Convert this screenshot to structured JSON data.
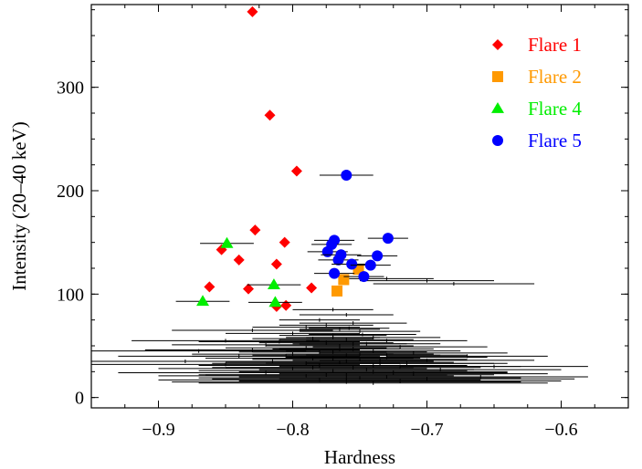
{
  "chart_data": {
    "type": "scatter",
    "title": "",
    "xlabel": "Hardness",
    "ylabel": "Intensity (20–40 keV)",
    "xlim": [
      -0.95,
      -0.55
    ],
    "ylim": [
      -10,
      380
    ],
    "xticks": [
      -0.9,
      -0.8,
      -0.7,
      -0.6
    ],
    "xtick_labels": [
      "−0.9",
      "−0.8",
      "−0.7",
      "−0.6"
    ],
    "yticks": [
      0,
      100,
      200,
      300
    ],
    "ytick_labels": [
      "0",
      "100",
      "200",
      "300"
    ],
    "grid": false,
    "legend_position": "top-right",
    "background_points": {
      "color": "#000000",
      "description": "persistent emission: black points with horizontal error bars",
      "points": [
        [
          -0.77,
          85,
          0.03
        ],
        [
          -0.76,
          80,
          0.035
        ],
        [
          -0.78,
          75,
          0.03
        ],
        [
          -0.755,
          72,
          0.04
        ],
        [
          -0.775,
          70,
          0.035
        ],
        [
          -0.79,
          68,
          0.04
        ],
        [
          -0.765,
          66,
          0.03
        ],
        [
          -0.75,
          64,
          0.045
        ],
        [
          -0.8,
          62,
          0.05
        ],
        [
          -0.77,
          60,
          0.04
        ],
        [
          -0.74,
          58,
          0.05
        ],
        [
          -0.785,
          57,
          0.045
        ],
        [
          -0.76,
          56,
          0.05
        ],
        [
          -0.73,
          55,
          0.06
        ],
        [
          -0.81,
          54,
          0.06
        ],
        [
          -0.775,
          53,
          0.05
        ],
        [
          -0.745,
          52,
          0.055
        ],
        [
          -0.82,
          51,
          0.07
        ],
        [
          -0.765,
          50,
          0.055
        ],
        [
          -0.72,
          49,
          0.065
        ],
        [
          -0.79,
          48,
          0.06
        ],
        [
          -0.755,
          47,
          0.06
        ],
        [
          -0.83,
          46,
          0.08
        ],
        [
          -0.74,
          45,
          0.065
        ],
        [
          -0.77,
          44,
          0.07
        ],
        [
          -0.71,
          43,
          0.07
        ],
        [
          -0.8,
          42,
          0.075
        ],
        [
          -0.76,
          41,
          0.07
        ],
        [
          -0.84,
          40,
          0.09
        ],
        [
          -0.73,
          39,
          0.075
        ],
        [
          -0.785,
          38,
          0.08
        ],
        [
          -0.75,
          37,
          0.08
        ],
        [
          -0.7,
          36,
          0.08
        ],
        [
          -0.815,
          35,
          0.09
        ],
        [
          -0.765,
          34,
          0.085
        ],
        [
          -0.735,
          33,
          0.085
        ],
        [
          -0.85,
          32,
          0.1
        ],
        [
          -0.78,
          31,
          0.09
        ],
        [
          -0.72,
          30,
          0.09
        ],
        [
          -0.755,
          29,
          0.095
        ],
        [
          -0.8,
          28,
          0.1
        ],
        [
          -0.69,
          27,
          0.09
        ],
        [
          -0.77,
          26,
          0.1
        ],
        [
          -0.74,
          25,
          0.1
        ],
        [
          -0.82,
          24,
          0.11
        ],
        [
          -0.71,
          23,
          0.1
        ],
        [
          -0.76,
          22,
          0.11
        ],
        [
          -0.79,
          21,
          0.11
        ],
        [
          -0.73,
          20,
          0.11
        ],
        [
          -0.75,
          19,
          0.12
        ],
        [
          -0.7,
          18,
          0.11
        ],
        [
          -0.78,
          17,
          0.12
        ],
        [
          -0.72,
          16,
          0.12
        ],
        [
          -0.76,
          15,
          0.13
        ],
        [
          -0.74,
          14,
          0.13
        ],
        [
          -0.77,
          38,
          0.06
        ],
        [
          -0.75,
          42,
          0.055
        ],
        [
          -0.76,
          35,
          0.065
        ],
        [
          -0.78,
          44,
          0.05
        ],
        [
          -0.74,
          31,
          0.07
        ],
        [
          -0.765,
          47,
          0.045
        ],
        [
          -0.745,
          27,
          0.08
        ],
        [
          -0.79,
          33,
          0.07
        ],
        [
          -0.73,
          41,
          0.06
        ],
        [
          -0.775,
          22,
          0.09
        ],
        [
          -0.755,
          52,
          0.04
        ],
        [
          -0.735,
          36,
          0.065
        ],
        [
          -0.785,
          29,
          0.075
        ],
        [
          -0.76,
          18,
          0.1
        ],
        [
          -0.725,
          24,
          0.085
        ],
        [
          -0.805,
          40,
          0.07
        ],
        [
          -0.715,
          33,
          0.075
        ],
        [
          -0.77,
          58,
          0.035
        ],
        [
          -0.748,
          61,
          0.04
        ],
        [
          -0.758,
          67,
          0.03
        ],
        [
          -0.73,
          115,
          0.035
        ],
        [
          -0.7,
          113,
          0.05
        ],
        [
          -0.68,
          110,
          0.06
        ],
        [
          -0.83,
          65,
          0.06
        ],
        [
          -0.85,
          55,
          0.07
        ],
        [
          -0.87,
          45,
          0.08
        ],
        [
          -0.88,
          35,
          0.09
        ],
        [
          -0.67,
          40,
          0.06
        ],
        [
          -0.65,
          30,
          0.07
        ],
        [
          -0.66,
          20,
          0.08
        ]
      ]
    },
    "series": [
      {
        "name": "Flare 1",
        "color": "#ff0000",
        "marker": "diamond",
        "points": [
          [
            -0.83,
            373,
            0
          ],
          [
            -0.817,
            273,
            0
          ],
          [
            -0.797,
            219,
            0
          ],
          [
            -0.828,
            162,
            0
          ],
          [
            -0.806,
            150,
            0
          ],
          [
            -0.853,
            143,
            0
          ],
          [
            -0.84,
            133,
            0
          ],
          [
            -0.812,
            129,
            0
          ],
          [
            -0.786,
            106,
            0
          ],
          [
            -0.862,
            107,
            0
          ],
          [
            -0.833,
            105,
            0
          ],
          [
            -0.812,
            88,
            0
          ],
          [
            -0.805,
            89,
            0
          ]
        ]
      },
      {
        "name": "Flare 2",
        "color": "#ff9900",
        "marker": "square",
        "points": [
          [
            -0.767,
            103,
            0
          ],
          [
            -0.762,
            114,
            0
          ],
          [
            -0.751,
            124,
            0
          ]
        ]
      },
      {
        "name": "Flare 4",
        "color": "#00ee00",
        "marker": "triangle",
        "points": [
          [
            -0.849,
            149,
            0.02
          ],
          [
            -0.867,
            93,
            0.02
          ],
          [
            -0.814,
            109,
            0.02
          ],
          [
            -0.813,
            92,
            0.02
          ]
        ]
      },
      {
        "name": "Flare 5",
        "color": "#0000ff",
        "marker": "circle",
        "points": [
          [
            -0.76,
            215,
            0.02
          ],
          [
            -0.769,
            152,
            0.015
          ],
          [
            -0.729,
            154,
            0.015
          ],
          [
            -0.774,
            141,
            0.015
          ],
          [
            -0.764,
            138,
            0.015
          ],
          [
            -0.737,
            137,
            0.015
          ],
          [
            -0.766,
            133,
            0.015
          ],
          [
            -0.756,
            129,
            0.015
          ],
          [
            -0.742,
            128,
            0.015
          ],
          [
            -0.769,
            120,
            0.015
          ],
          [
            -0.747,
            117,
            0.015
          ],
          [
            -0.771,
            148,
            0.015
          ]
        ]
      }
    ]
  }
}
